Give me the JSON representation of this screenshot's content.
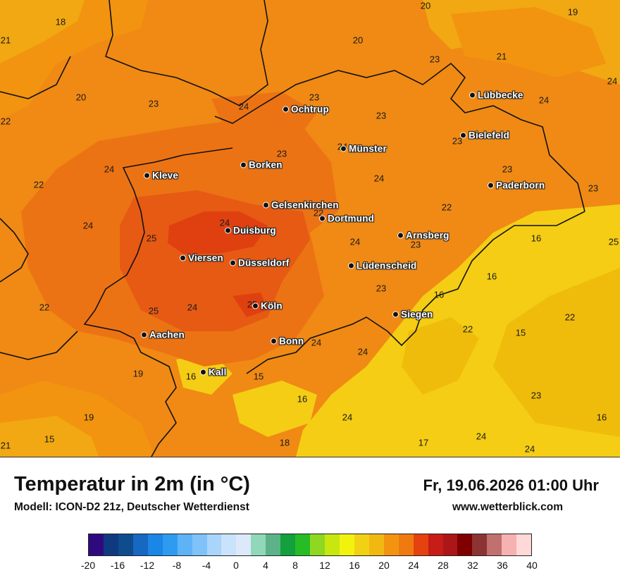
{
  "title": "Temperatur in 2m (in °C)",
  "subtitle": "Modell: ICON-D2 21z, Deutscher Wetterdienst",
  "datetime": "Fr, 19.06.2026 01:00 Uhr",
  "website": "www.wetterblick.com",
  "colors": {
    "t15": "#f0bc0c",
    "t16": "#f4cd14",
    "t18": "#f1a812",
    "t20": "#f2940f",
    "t23": "#f08a14",
    "t24": "#ec7314",
    "t25": "#e65a14",
    "t26": "#e0400f",
    "border": "#111111"
  },
  "colorbar": {
    "colors": [
      "#2f0a7f",
      "#103a80",
      "#0f4c8e",
      "#1668c1",
      "#1a86e5",
      "#2e9bf1",
      "#5db3f6",
      "#7fc2f9",
      "#a9d5fb",
      "#c9e3fc",
      "#dde8fb",
      "#90d8b9",
      "#5cb38a",
      "#12a13c",
      "#27bb26",
      "#8fd720",
      "#c8e610",
      "#f2f20f",
      "#f1d114",
      "#f2b812",
      "#f29410",
      "#f07a10",
      "#e5420f",
      "#c61d16",
      "#ac1616",
      "#800000",
      "#8c3333",
      "#c17070",
      "#f6b1b1",
      "#ffd8d8"
    ],
    "labels": [
      "-20",
      "-16",
      "-12",
      "-8",
      "-4",
      "0",
      "4",
      "8",
      "12",
      "16",
      "20",
      "24",
      "28",
      "32",
      "36",
      "40"
    ]
  },
  "cities": [
    {
      "name": "Ochtrup"
    },
    {
      "name": "Lübbecke"
    },
    {
      "name": "Bielefeld"
    },
    {
      "name": "Münster"
    },
    {
      "name": "Borken"
    },
    {
      "name": "Kleve"
    },
    {
      "name": "Paderborn"
    },
    {
      "name": "Gelsenkirchen"
    },
    {
      "name": "Dortmund"
    },
    {
      "name": "Duisburg"
    },
    {
      "name": "Arnsberg"
    },
    {
      "name": "Viersen"
    },
    {
      "name": "Düsseldorf"
    },
    {
      "name": "Lüdenscheid"
    },
    {
      "name": "Köln"
    },
    {
      "name": "Siegen"
    },
    {
      "name": "Aachen"
    },
    {
      "name": "Bonn"
    },
    {
      "name": "Kall"
    }
  ],
  "temperatures": [
    "20",
    "19",
    "18",
    "21",
    "20",
    "23",
    "21",
    "24",
    "23",
    "24",
    "23",
    "24",
    "20",
    "22",
    "23",
    "23",
    "23",
    "24",
    "24",
    "24",
    "22",
    "23",
    "23",
    "24",
    "25",
    "24",
    "22",
    "22",
    "25",
    "24",
    "23",
    "16",
    "16",
    "22",
    "23",
    "16",
    "24",
    "25",
    "22",
    "25",
    "24",
    "22",
    "15",
    "16",
    "19",
    "15",
    "24",
    "16",
    "23",
    "19",
    "16",
    "24",
    "15",
    "21",
    "18",
    "17",
    "24",
    "24",
    "25"
  ]
}
